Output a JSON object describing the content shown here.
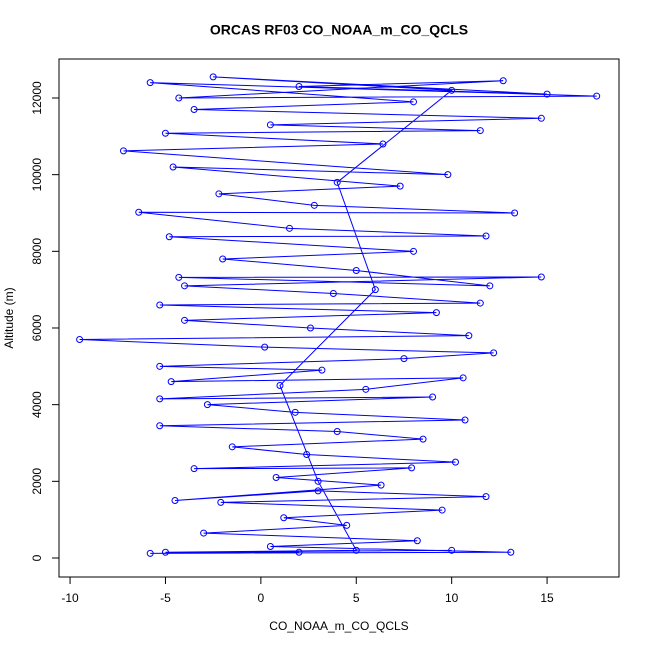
{
  "chart_data": {
    "type": "line",
    "markers": "circle",
    "title": "ORCAS RF03 CO_NOAA_m_CO_QCLS",
    "x_label": "CO_NOAA_m_CO_QCLS",
    "y_label": "Altitude (m)",
    "color": "#0000ff",
    "xlim": [
      -10.58,
      18.77
    ],
    "ylim": [
      -496,
      13017
    ],
    "xticks": [
      -10,
      -5,
      0,
      5,
      10,
      15
    ],
    "yticks": [
      0,
      2000,
      4000,
      6000,
      8000,
      10000,
      12000
    ],
    "series": [
      {
        "name": "CO_NOAA_m_CO_QCLS",
        "x": [
          2.0,
          -5.8,
          13.1,
          0.5,
          8.2,
          -3.0,
          4.5,
          1.2,
          9.5,
          -2.1,
          11.8,
          3.0,
          -4.5,
          6.3,
          0.8,
          7.9,
          -3.5,
          10.2,
          2.4,
          -1.5,
          8.5,
          4.0,
          -5.3,
          10.7,
          1.8,
          -2.8,
          9.0,
          -5.3,
          5.5,
          10.6,
          -4.7,
          3.2,
          -5.3,
          7.5,
          12.2,
          0.2,
          -9.5,
          10.9,
          2.6,
          -4.0,
          9.2,
          -5.3,
          11.5,
          3.8,
          -4.0,
          14.7,
          -4.3,
          12.0,
          5.0,
          -2.0,
          8.0,
          -4.8,
          11.8,
          1.5,
          -6.4,
          13.3,
          2.8,
          -2.2,
          7.3,
          -4.6,
          9.8,
          -7.2,
          6.4,
          -5.0,
          11.5,
          0.5,
          14.7,
          -3.5,
          8.0,
          -5.8,
          17.6,
          -4.3,
          12.7,
          2.0,
          15.0,
          -2.5,
          10.0,
          4.0,
          6.0,
          1.0,
          3.0,
          5.0,
          -5.0,
          10.0
        ],
        "values": [
          150,
          120,
          150,
          300,
          450,
          650,
          850,
          1050,
          1250,
          1450,
          1600,
          1750,
          1500,
          1900,
          2100,
          2350,
          2330,
          2500,
          2700,
          2900,
          3100,
          3300,
          3450,
          3600,
          3800,
          4000,
          4200,
          4150,
          4400,
          4700,
          4600,
          4900,
          5000,
          5200,
          5350,
          5500,
          5700,
          5800,
          6000,
          6200,
          6400,
          6600,
          6650,
          6900,
          7100,
          7330,
          7320,
          7100,
          7500,
          7800,
          8000,
          8380,
          8400,
          8600,
          9020,
          9000,
          9200,
          9500,
          9700,
          10200,
          10000,
          10620,
          10800,
          11080,
          11150,
          11300,
          11470,
          11700,
          11900,
          12400,
          12050,
          12000,
          12450,
          12300,
          12100,
          12550,
          12200,
          9800,
          7000,
          4500,
          2000,
          200,
          150,
          200
        ]
      }
    ]
  }
}
